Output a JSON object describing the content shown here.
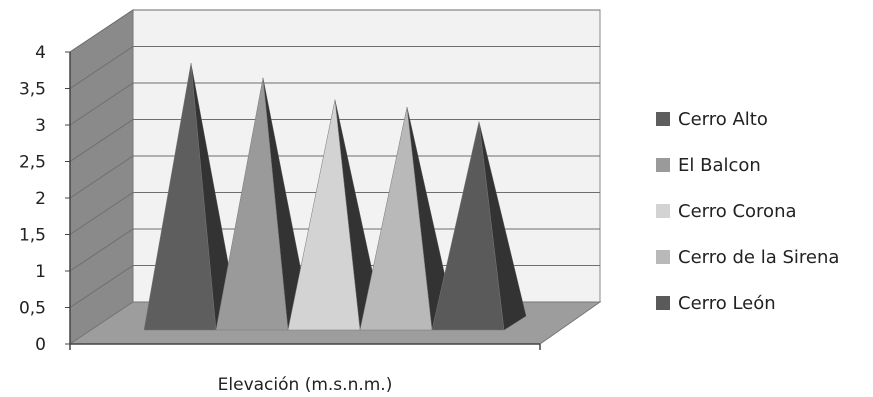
{
  "chart_data": {
    "type": "bar",
    "style": "3d-pyramid",
    "categories": [
      "Elevación (m.s.n.m.)"
    ],
    "series": [
      {
        "name": "Cerro Alto",
        "values": [
          3.9
        ],
        "color": "#5e5e5e"
      },
      {
        "name": "El Balcon",
        "values": [
          3.7
        ],
        "color": "#9a9a9a"
      },
      {
        "name": "Cerro Corona",
        "values": [
          3.4
        ],
        "color": "#d3d3d3"
      },
      {
        "name": "Cerro de la Sirena",
        "values": [
          3.3
        ],
        "color": "#b9b9b9"
      },
      {
        "name": "Cerro León",
        "values": [
          3.1
        ],
        "color": "#5a5a5a"
      }
    ],
    "xlabel": "Elevación (m.s.n.m.)",
    "ylabel": "",
    "ylim": [
      0,
      4
    ],
    "yticks": [
      "0",
      "0,5",
      "1",
      "1,5",
      "2",
      "2,5",
      "3",
      "3,5",
      "4"
    ],
    "grid": true,
    "legend_position": "right"
  }
}
